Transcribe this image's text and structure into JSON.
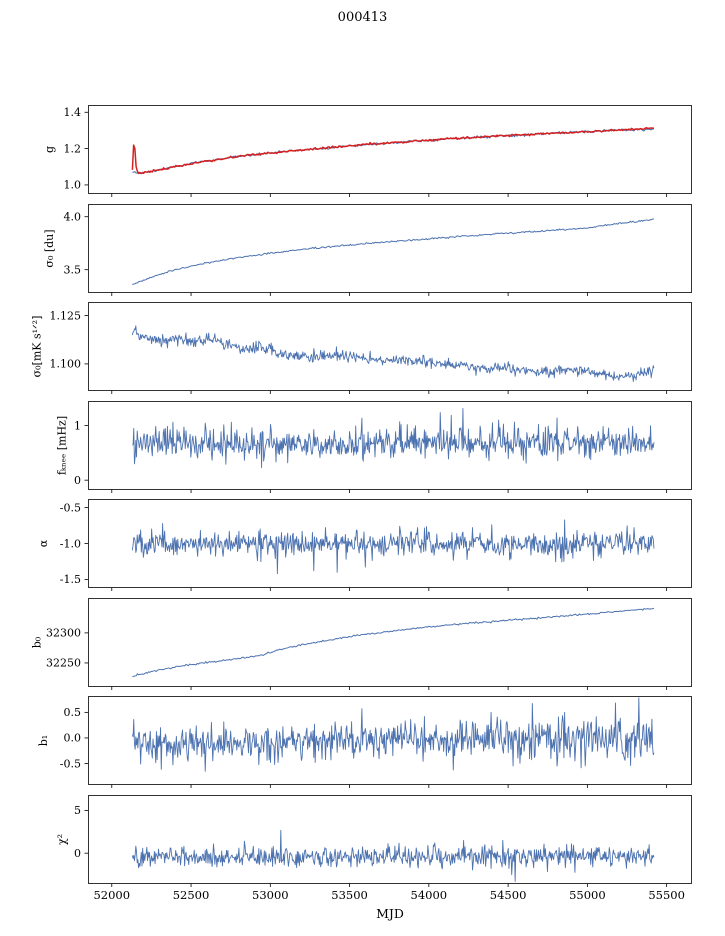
{
  "chart_data": {
    "type": "line",
    "title": "000413",
    "xlabel": "MJD",
    "x_range": [
      51850,
      55660
    ],
    "x_data_range": [
      52130,
      55420
    ],
    "xticks": [
      52000,
      52500,
      53000,
      53500,
      54000,
      54500,
      55000,
      55500
    ],
    "xtick_labels": [
      "52000",
      "52500",
      "53000",
      "53500",
      "54000",
      "54500",
      "55000",
      "55500"
    ],
    "line_color": "#4c72b0",
    "overlay_color": "#d62020",
    "grid": false,
    "legend": "none",
    "panels": [
      {
        "id": "g",
        "ylabel": "g",
        "ylim": [
          0.95,
          1.44
        ],
        "yticks": [
          1.0,
          1.2,
          1.4
        ],
        "ytick_labels": [
          "1.0",
          "1.2",
          "1.4"
        ],
        "series": [
          {
            "name": "g-fit",
            "color": "#4c72b0",
            "width": 1.1,
            "points": 420,
            "noise": 0.003,
            "anchors": [
              [
                52130,
                1.072
              ],
              [
                52160,
                1.062
              ],
              [
                52250,
                1.075
              ],
              [
                52400,
                1.1
              ],
              [
                52500,
                1.118
              ],
              [
                52700,
                1.145
              ],
              [
                52900,
                1.168
              ],
              [
                53100,
                1.185
              ],
              [
                53300,
                1.2
              ],
              [
                53500,
                1.215
              ],
              [
                53700,
                1.228
              ],
              [
                53900,
                1.24
              ],
              [
                54100,
                1.252
              ],
              [
                54300,
                1.262
              ],
              [
                54500,
                1.272
              ],
              [
                54700,
                1.281
              ],
              [
                54900,
                1.289
              ],
              [
                55100,
                1.297
              ],
              [
                55250,
                1.302
              ],
              [
                55420,
                1.308
              ]
            ]
          },
          {
            "name": "g-overlay",
            "color": "#d62020",
            "width": 1.5,
            "points": 420,
            "noise": 0.0028,
            "anchors": [
              [
                52130,
                1.08
              ],
              [
                52136,
                1.19
              ],
              [
                52140,
                1.248
              ],
              [
                52145,
                1.21
              ],
              [
                52150,
                1.12
              ],
              [
                52158,
                1.072
              ],
              [
                52165,
                1.063
              ],
              [
                52250,
                1.075
              ],
              [
                52400,
                1.1
              ],
              [
                52500,
                1.118
              ],
              [
                52700,
                1.145
              ],
              [
                52900,
                1.168
              ],
              [
                53100,
                1.185
              ],
              [
                53300,
                1.2
              ],
              [
                53500,
                1.215
              ],
              [
                53700,
                1.228
              ],
              [
                53900,
                1.24
              ],
              [
                54100,
                1.252
              ],
              [
                54300,
                1.262
              ],
              [
                54500,
                1.272
              ],
              [
                54700,
                1.281
              ],
              [
                54900,
                1.289
              ],
              [
                55100,
                1.297
              ],
              [
                55250,
                1.306
              ],
              [
                55420,
                1.314
              ]
            ]
          }
        ]
      },
      {
        "id": "sigma0-du",
        "ylabel": "σ₀ [du]",
        "ylim": [
          3.28,
          4.12
        ],
        "yticks": [
          3.5,
          4.0
        ],
        "ytick_labels": [
          "3.5",
          "4.0"
        ],
        "series": [
          {
            "name": "sigma0-du",
            "color": "#4c72b0",
            "width": 1.0,
            "points": 420,
            "noise": 0.004,
            "anchors": [
              [
                52130,
                3.36
              ],
              [
                52250,
                3.43
              ],
              [
                52400,
                3.5
              ],
              [
                52600,
                3.565
              ],
              [
                52800,
                3.615
              ],
              [
                53000,
                3.655
              ],
              [
                53200,
                3.69
              ],
              [
                53400,
                3.72
              ],
              [
                53600,
                3.745
              ],
              [
                53800,
                3.77
              ],
              [
                54000,
                3.79
              ],
              [
                54200,
                3.815
              ],
              [
                54400,
                3.835
              ],
              [
                54600,
                3.855
              ],
              [
                54800,
                3.875
              ],
              [
                55000,
                3.895
              ],
              [
                55200,
                3.935
              ],
              [
                55420,
                3.975
              ]
            ]
          }
        ]
      },
      {
        "id": "sigma0-mks",
        "ylabel": "σ₀[mK s¹ᐟ²]",
        "ylim": [
          1.086,
          1.132
        ],
        "yticks": [
          1.1,
          1.125
        ],
        "ytick_labels": [
          "1.100",
          "1.125"
        ],
        "series": [
          {
            "name": "sigma0-mks",
            "color": "#4c72b0",
            "width": 0.9,
            "points": 760,
            "noise": 0.0015,
            "anchors": [
              [
                52130,
                1.117
              ],
              [
                52200,
                1.113
              ],
              [
                52350,
                1.1125
              ],
              [
                52500,
                1.1115
              ],
              [
                52650,
                1.112
              ],
              [
                52800,
                1.108
              ],
              [
                52950,
                1.1085
              ],
              [
                53100,
                1.104
              ],
              [
                53250,
                1.1035
              ],
              [
                53400,
                1.1045
              ],
              [
                53550,
                1.103
              ],
              [
                53700,
                1.1015
              ],
              [
                53850,
                1.1025
              ],
              [
                54000,
                1.101
              ],
              [
                54150,
                1.0995
              ],
              [
                54300,
                1.0975
              ],
              [
                54450,
                1.098
              ],
              [
                54600,
                1.0965
              ],
              [
                54750,
                1.0955
              ],
              [
                54900,
                1.097
              ],
              [
                55050,
                1.0955
              ],
              [
                55200,
                1.0935
              ],
              [
                55300,
                1.094
              ],
              [
                55420,
                1.0965
              ]
            ]
          }
        ]
      },
      {
        "id": "fknee",
        "ylabel": "fₖₙₑₑ [mHz]",
        "ylim": [
          -0.18,
          1.45
        ],
        "yticks": [
          0,
          1
        ],
        "ytick_labels": [
          "0",
          "1"
        ],
        "series": [
          {
            "name": "fknee",
            "color": "#4c72b0",
            "width": 0.9,
            "points": 760,
            "noise": 0.15,
            "spike_prob": 0.012,
            "spike_amp": 0.38,
            "anchors": [
              [
                52130,
                0.67
              ],
              [
                55420,
                0.69
              ]
            ]
          }
        ]
      },
      {
        "id": "alpha",
        "ylabel": "α",
        "ylim": [
          -1.62,
          -0.38
        ],
        "yticks": [
          -0.5,
          -1.0,
          -1.5
        ],
        "ytick_labels": [
          "-0.5",
          "-1.0",
          "-1.5"
        ],
        "series": [
          {
            "name": "alpha",
            "color": "#4c72b0",
            "width": 0.9,
            "points": 760,
            "noise": 0.09,
            "spike_prob": 0.012,
            "spike_amp": 0.28,
            "anchors": [
              [
                52130,
                -1.0
              ],
              [
                55420,
                -1.0
              ]
            ]
          }
        ]
      },
      {
        "id": "b0",
        "ylabel": "b₀",
        "ylim": [
          32210,
          32358
        ],
        "yticks": [
          32250,
          32300
        ],
        "ytick_labels": [
          "32250",
          "32300"
        ],
        "series": [
          {
            "name": "b0",
            "color": "#4c72b0",
            "width": 1.0,
            "points": 420,
            "noise": 0.7,
            "anchors": [
              [
                52130,
                32227
              ],
              [
                52250,
                32236
              ],
              [
                52400,
                32243
              ],
              [
                52550,
                32249
              ],
              [
                52700,
                32254
              ],
              [
                52850,
                32259
              ],
              [
                52950,
                32263
              ],
              [
                53050,
                32272
              ],
              [
                53200,
                32280
              ],
              [
                53350,
                32287
              ],
              [
                53500,
                32294
              ],
              [
                53650,
                32299
              ],
              [
                53800,
                32304
              ],
              [
                54000,
                32310
              ],
              [
                54200,
                32315
              ],
              [
                54400,
                32319
              ],
              [
                54600,
                32323
              ],
              [
                54800,
                32327
              ],
              [
                55000,
                32331
              ],
              [
                55200,
                32336
              ],
              [
                55420,
                32341
              ]
            ]
          }
        ]
      },
      {
        "id": "b1",
        "ylabel": "b₁",
        "ylim": [
          -0.92,
          0.82
        ],
        "yticks": [
          -0.5,
          0.0,
          0.5
        ],
        "ytick_labels": [
          "-0.5",
          "0.0",
          "0.5"
        ],
        "series": [
          {
            "name": "b1",
            "color": "#4c72b0",
            "width": 0.9,
            "points": 760,
            "noise": 0.15,
            "noise_end": 0.22,
            "spike_prob": 0.01,
            "spike_amp": 0.4,
            "anchors": [
              [
                52130,
                -0.14
              ],
              [
                53000,
                -0.08
              ],
              [
                54000,
                -0.02
              ],
              [
                55420,
                -0.02
              ]
            ]
          }
        ]
      },
      {
        "id": "chi2",
        "ylabel": "χ²",
        "ylim": [
          -3.6,
          6.8
        ],
        "yticks": [
          0,
          5
        ],
        "ytick_labels": [
          "0",
          "5"
        ],
        "series": [
          {
            "name": "chi2",
            "color": "#4c72b0",
            "width": 0.9,
            "points": 760,
            "noise": 0.62,
            "spike_prob": 0.01,
            "spike_amp": 1.6,
            "anchors": [
              [
                52130,
                -0.55
              ],
              [
                55420,
                -0.35
              ]
            ]
          }
        ]
      }
    ]
  }
}
